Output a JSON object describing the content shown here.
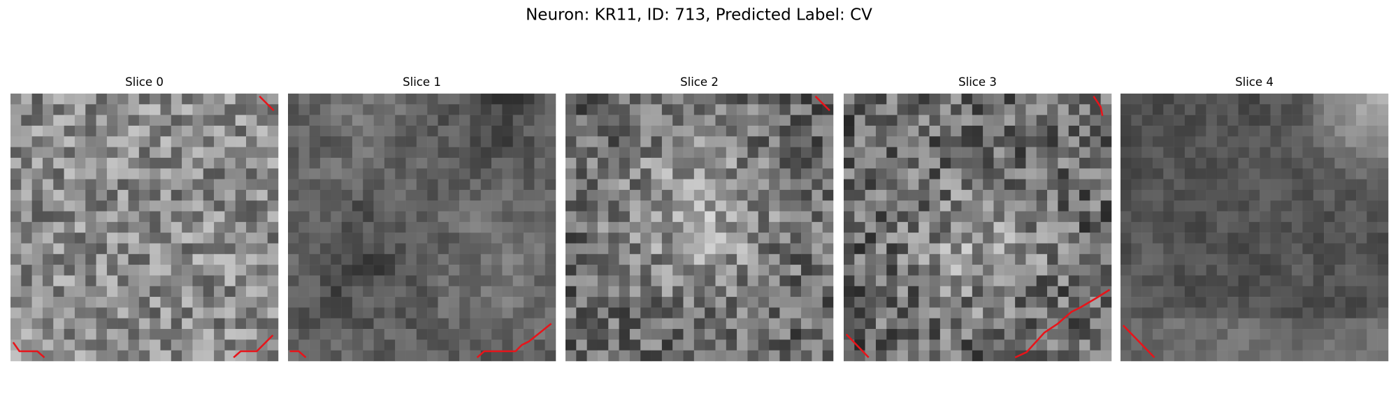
{
  "title": "Neuron: KR11, ID: 713, Predicted Label: CV",
  "panels": [
    {
      "title": "Slice 0"
    },
    {
      "title": "Slice 1"
    },
    {
      "title": "Slice 2"
    },
    {
      "title": "Slice 3"
    },
    {
      "title": "Slice 4"
    }
  ]
}
